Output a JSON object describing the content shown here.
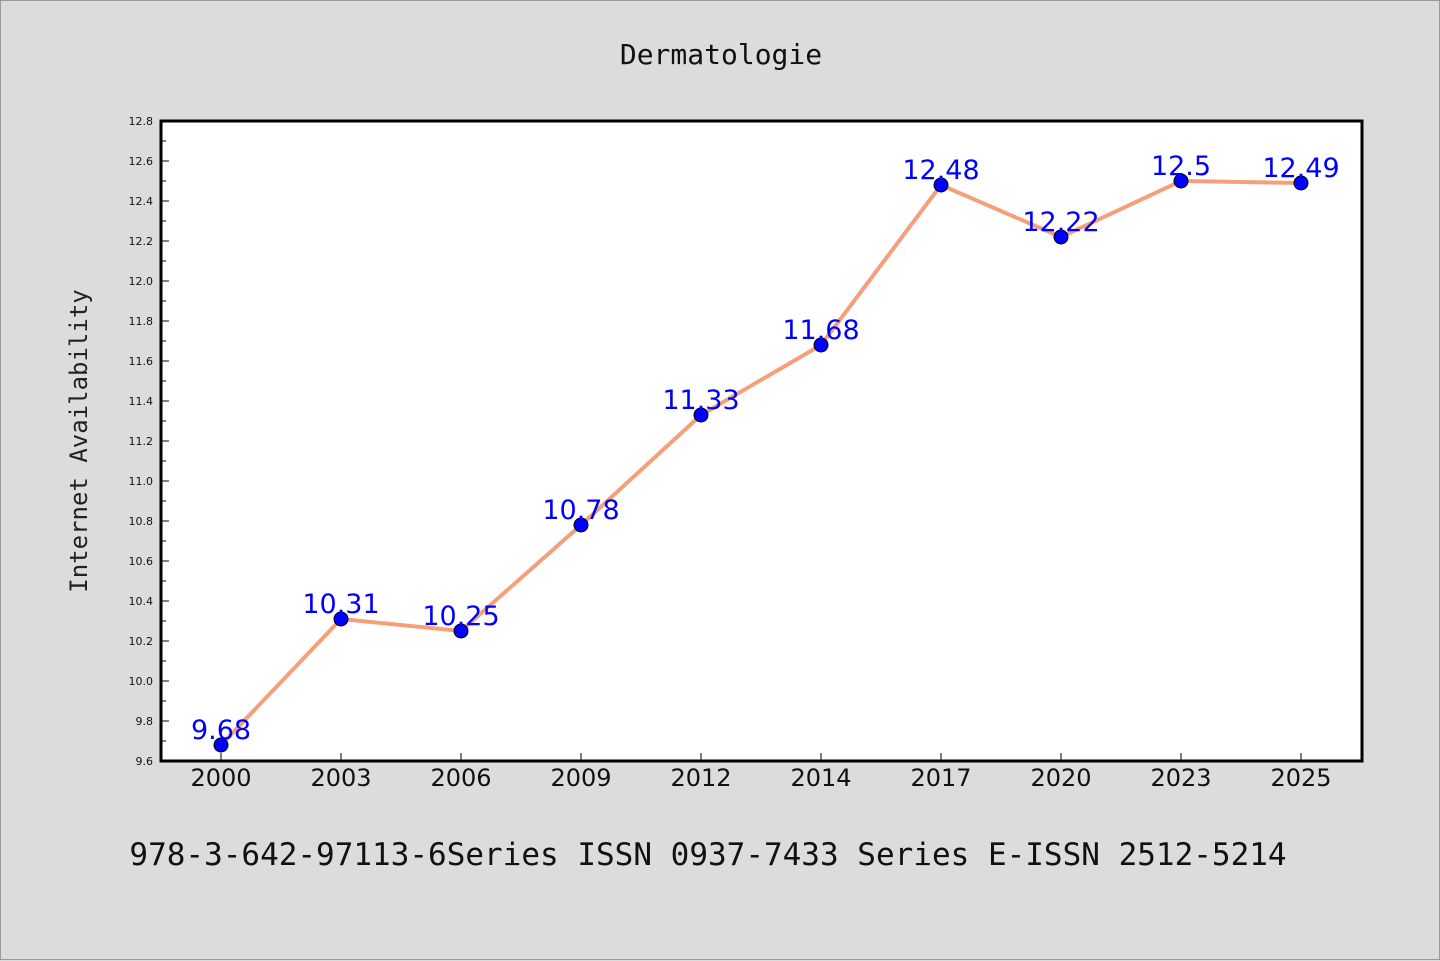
{
  "chart_data": {
    "type": "line",
    "title": "Dermatologie",
    "xlabel": "",
    "ylabel": "Internet Availability",
    "categories": [
      "2000",
      "2003",
      "2006",
      "2009",
      "2012",
      "2014",
      "2017",
      "2020",
      "2023",
      "2025"
    ],
    "series": [
      {
        "values": [
          9.68,
          10.31,
          10.25,
          10.78,
          11.33,
          11.68,
          12.48,
          12.22,
          12.5,
          12.49
        ],
        "data_labels": [
          "9.68",
          "10.31",
          "10.25",
          "10.78",
          "11.33",
          "11.68",
          "12.48",
          "12.22",
          "12.5",
          "12.49"
        ],
        "line_color": "#f4a07a",
        "marker_color": "#0000ff"
      }
    ],
    "ylim": [
      9.6,
      12.8
    ],
    "yticks": [
      "9.6",
      "9.8",
      "10.0",
      "10.2",
      "10.4",
      "10.6",
      "10.8",
      "11.0",
      "11.2",
      "11.4",
      "11.6",
      "11.8",
      "12.0",
      "12.2",
      "12.4",
      "12.6",
      "12.8"
    ],
    "grid": false,
    "legend": "none",
    "background_color": "#dcdcdc",
    "plot_background_color": "#ffffff"
  },
  "footer": {
    "text": "978-3-642-97113-6Series ISSN 0937-7433 Series E-ISSN 2512-5214"
  }
}
